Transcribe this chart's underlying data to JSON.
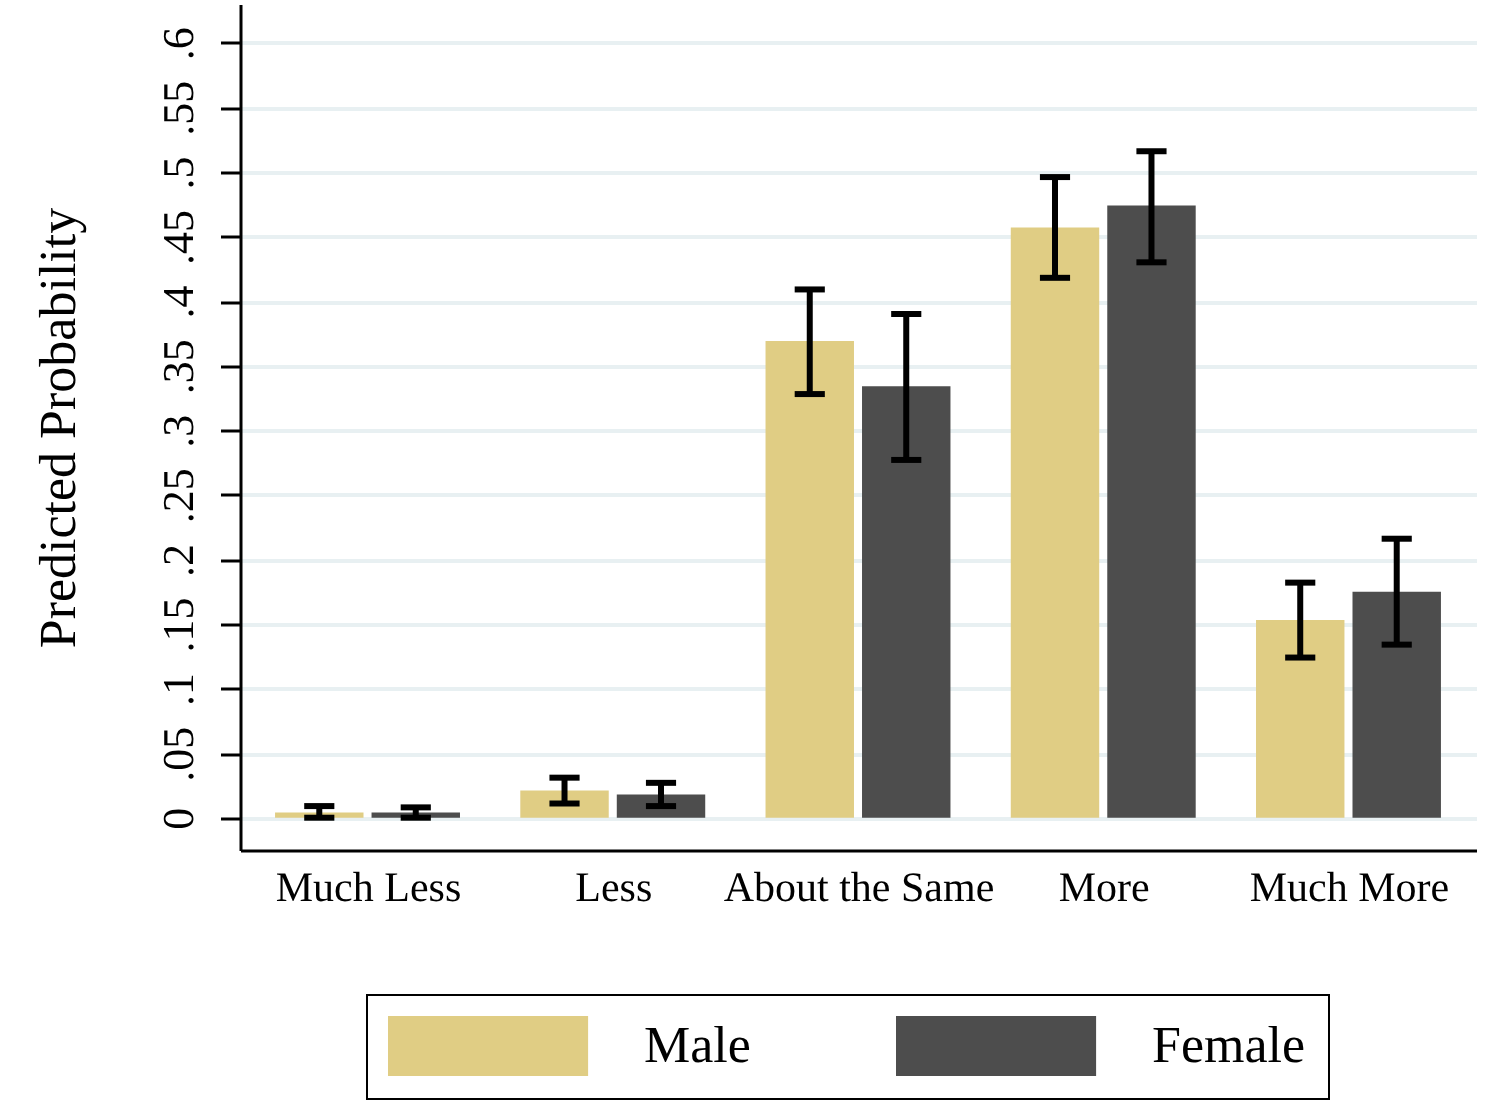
{
  "chart_data": {
    "type": "bar",
    "ylabel": "Predicted Probability",
    "categories": [
      "Much Less",
      "Less",
      "About the Same",
      "More",
      "Much More"
    ],
    "series": [
      {
        "name": "Male",
        "color": "#e0cd84",
        "values": [
          0.004,
          0.021,
          0.369,
          0.457,
          0.153
        ],
        "errors": [
          [
            0.0,
            0.009
          ],
          [
            0.011,
            0.031
          ],
          [
            0.328,
            0.409
          ],
          [
            0.418,
            0.496
          ],
          [
            0.124,
            0.182
          ]
        ]
      },
      {
        "name": "Female",
        "color": "#4d4d4d",
        "values": [
          0.004,
          0.018,
          0.334,
          0.474,
          0.175
        ],
        "errors": [
          [
            0.0,
            0.008
          ],
          [
            0.009,
            0.027
          ],
          [
            0.277,
            0.39
          ],
          [
            0.43,
            0.516
          ],
          [
            0.134,
            0.216
          ]
        ]
      }
    ],
    "ylim": [
      -0.025,
      0.63
    ],
    "yticks": [
      0,
      {
        "value": 0.05,
        "label": ".05"
      },
      {
        "value": 0.1,
        "label": ".1"
      },
      {
        "value": 0.15,
        "label": ".15"
      },
      {
        "value": 0.2,
        "label": ".2"
      },
      {
        "value": 0.25,
        "label": ".25"
      },
      {
        "value": 0.3,
        "label": ".3"
      },
      {
        "value": 0.35,
        "label": ".35"
      },
      {
        "value": 0.4,
        "label": ".4"
      },
      {
        "value": 0.45,
        "label": ".45"
      },
      {
        "value": 0.5,
        "label": ".5"
      },
      {
        "value": 0.55,
        "label": ".55"
      },
      {
        "value": 0.6,
        "label": ".6"
      }
    ],
    "grid": "y",
    "legend": "bottom"
  }
}
